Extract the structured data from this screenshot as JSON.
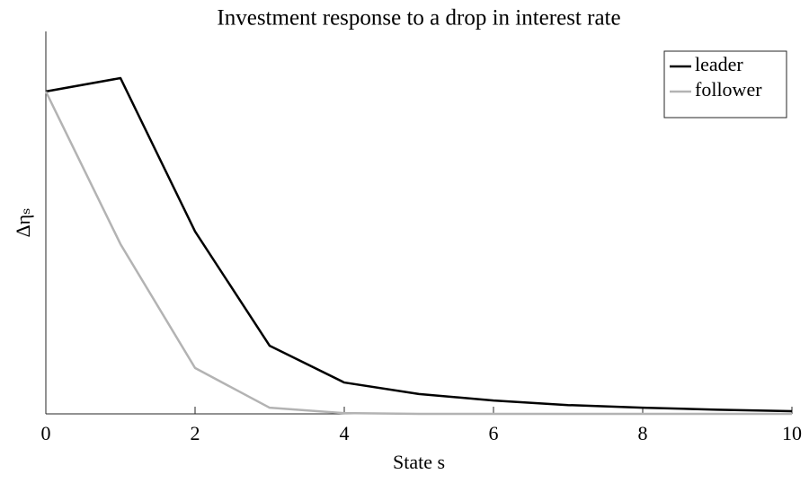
{
  "chart_data": {
    "type": "line",
    "title": "Investment response to a drop in interest rate",
    "xlabel": "State s",
    "ylabel": "Δηₛ",
    "x": [
      0,
      1,
      2,
      3,
      4,
      5,
      6,
      7,
      8,
      9,
      10
    ],
    "series": [
      {
        "name": "leader",
        "color": "#000000",
        "values": [
          0.843,
          0.878,
          0.477,
          0.178,
          0.082,
          0.052,
          0.035,
          0.023,
          0.016,
          0.011,
          0.007
        ]
      },
      {
        "name": "follower",
        "color": "#b3b3b3",
        "values": [
          0.843,
          0.444,
          0.12,
          0.016,
          0.002,
          0.0,
          0.0,
          0.0,
          0.0,
          0.0,
          0.0
        ]
      }
    ],
    "xlim": [
      0,
      10
    ],
    "xticks": [
      0,
      2,
      4,
      6,
      8,
      10
    ],
    "ylim": [
      0,
      1
    ],
    "legend": "upper right"
  }
}
